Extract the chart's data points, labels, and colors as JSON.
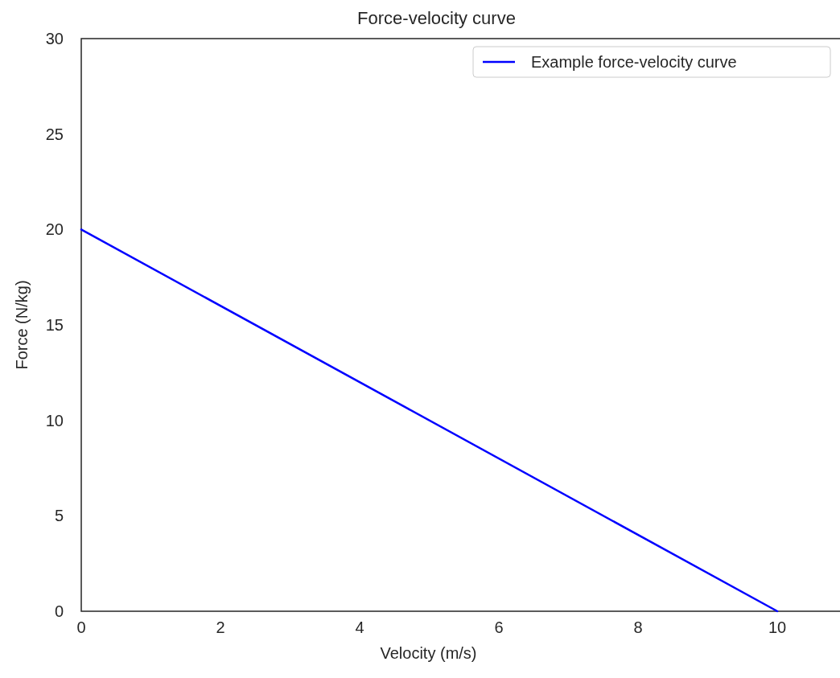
{
  "chart_data": {
    "type": "line",
    "title": "Force-velocity curve",
    "xlabel": "Velocity (m/s)",
    "ylabel": "Force (N/kg)",
    "x": [
      0,
      10
    ],
    "series": [
      {
        "name": "Example force-velocity curve",
        "color": "#0000ff",
        "values": [
          20,
          0
        ]
      }
    ],
    "xlim": [
      0,
      10.9
    ],
    "xticks": [
      0,
      2,
      4,
      6,
      8,
      10
    ],
    "ylim": [
      0,
      30
    ],
    "yticks": [
      0,
      5,
      10,
      15,
      20,
      25,
      30
    ],
    "grid": false,
    "legend": "top right",
    "marker": "none",
    "line_style": "solid"
  }
}
